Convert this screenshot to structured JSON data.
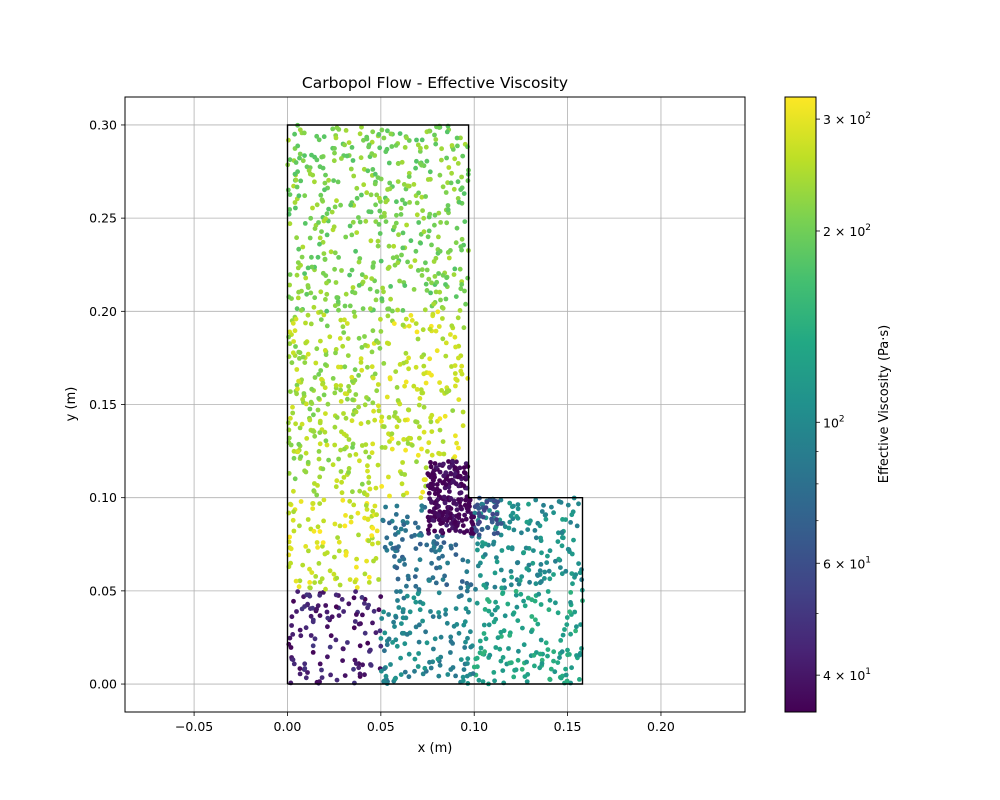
{
  "chart_data": {
    "type": "scatter",
    "title": "Carbopol Flow - Effective Viscosity",
    "xlabel": "x (m)",
    "ylabel": "y (m)",
    "xlim": [
      -0.087,
      0.245
    ],
    "ylim": [
      -0.015,
      0.315
    ],
    "x_ticks": [
      -0.05,
      0.0,
      0.05,
      0.1,
      0.15,
      0.2
    ],
    "x_tick_labels": [
      "−0.05",
      "0.00",
      "0.05",
      "0.10",
      "0.15",
      "0.20"
    ],
    "y_ticks": [
      0.0,
      0.05,
      0.1,
      0.15,
      0.2,
      0.25,
      0.3
    ],
    "y_tick_labels": [
      "0.00",
      "0.05",
      "0.10",
      "0.15",
      "0.20",
      "0.25",
      "0.30"
    ],
    "grid": true,
    "colormap": "viridis",
    "domain_outline": [
      [
        0.0,
        0.0
      ],
      [
        0.158,
        0.0
      ],
      [
        0.158,
        0.1
      ],
      [
        0.097,
        0.1
      ],
      [
        0.097,
        0.3
      ],
      [
        0.0,
        0.3
      ],
      [
        0.0,
        0.0
      ]
    ],
    "viscosity_regions": [
      {
        "x": [
          0.0,
          0.097
        ],
        "y": [
          0.2,
          0.3
        ],
        "viscosity": 210
      },
      {
        "x": [
          0.0,
          0.05
        ],
        "y": [
          0.1,
          0.2
        ],
        "viscosity": 240
      },
      {
        "x": [
          0.05,
          0.097
        ],
        "y": [
          0.1,
          0.2
        ],
        "viscosity": 270
      },
      {
        "x": [
          0.0,
          0.05
        ],
        "y": [
          0.05,
          0.1
        ],
        "viscosity": 285
      },
      {
        "x": [
          0.05,
          0.1
        ],
        "y": [
          0.05,
          0.1
        ],
        "viscosity": 80
      },
      {
        "x": [
          0.0,
          0.05
        ],
        "y": [
          0.0,
          0.05
        ],
        "viscosity": 42
      },
      {
        "x": [
          0.05,
          0.1
        ],
        "y": [
          0.0,
          0.05
        ],
        "viscosity": 95
      },
      {
        "x": [
          0.1,
          0.158
        ],
        "y": [
          0.05,
          0.1
        ],
        "viscosity": 105
      },
      {
        "x": [
          0.1,
          0.158
        ],
        "y": [
          0.0,
          0.05
        ],
        "viscosity": 125
      },
      {
        "x": [
          0.075,
          0.1
        ],
        "y": [
          0.08,
          0.12
        ],
        "viscosity": 36
      }
    ],
    "colorbar": {
      "label": "Effective Viscosity (Pa·s)",
      "scale": "log",
      "range": [
        35,
        325
      ],
      "major_ticks": [
        {
          "value": 40,
          "base": "4 × 10",
          "exp": "1"
        },
        {
          "value": 60,
          "base": "6 × 10",
          "exp": "1"
        },
        {
          "value": 100,
          "base": "10",
          "exp": "2"
        },
        {
          "value": 200,
          "base": "2 × 10",
          "exp": "2"
        },
        {
          "value": 300,
          "base": "3 × 10",
          "exp": "2"
        }
      ],
      "minor_ticks": [
        50,
        70,
        80,
        90
      ]
    }
  }
}
